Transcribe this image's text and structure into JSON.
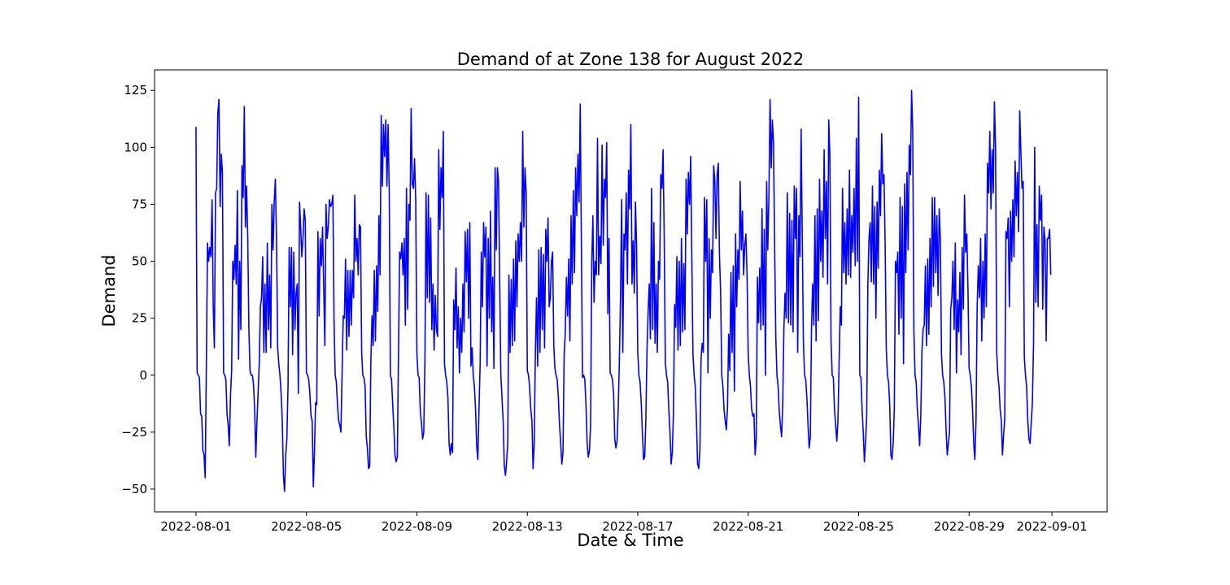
{
  "chart_data": {
    "type": "line",
    "title": "Demand of at Zone 138 for August 2022",
    "xlabel": "Date & Time",
    "ylabel": "Demand",
    "x_start": "2022-08-01",
    "x_end": "2022-08-31 23:00",
    "xlim": [
      "2022-07-30 12:00",
      "2022-09-03 00:00"
    ],
    "ylim": [
      -60,
      134
    ],
    "x_ticks": [
      "2022-08-01",
      "2022-08-05",
      "2022-08-09",
      "2022-08-13",
      "2022-08-17",
      "2022-08-21",
      "2022-08-25",
      "2022-08-29",
      "2022-09-01"
    ],
    "y_ticks": [
      125,
      100,
      75,
      50,
      25,
      0,
      -25,
      -50
    ],
    "y_tick_labels": [
      "125",
      "100",
      "75",
      "50",
      "25",
      "0",
      "−25",
      "−50"
    ],
    "grid": false,
    "line_color": "#0000ff",
    "series": [
      {
        "values": [
          109,
          1,
          0,
          -1,
          -17,
          -18,
          -33,
          -35,
          -45,
          3,
          58,
          50,
          56,
          52,
          77,
          30,
          12,
          80,
          82,
          115,
          121,
          74,
          97,
          89,
          1,
          0,
          -2,
          -17,
          -22,
          -31,
          -9,
          2,
          50,
          42,
          57,
          40,
          81,
          7,
          50,
          20,
          92,
          78,
          118,
          65,
          83,
          60,
          20,
          2,
          0,
          0,
          -4,
          -15,
          -36,
          -20,
          -8,
          5,
          30,
          34,
          52,
          10,
          40,
          10,
          58,
          20,
          44,
          12,
          75,
          55,
          76,
          86,
          60,
          12,
          5,
          0,
          -8,
          -20,
          -44,
          -51,
          -35,
          -28,
          -5,
          56,
          30,
          56,
          9,
          54,
          20,
          36,
          40,
          -8,
          76,
          65,
          52,
          60,
          73,
          68,
          1,
          0,
          -2,
          -8,
          -18,
          -20,
          -49,
          -33,
          -12,
          -13,
          63,
          26,
          60,
          48,
          65,
          40,
          13,
          75,
          60,
          65,
          77,
          74,
          75,
          79,
          24,
          0,
          -3,
          -13,
          -20,
          -22,
          -25,
          1,
          26,
          25,
          51,
          11,
          46,
          17,
          46,
          22,
          46,
          34,
          79,
          50,
          60,
          44,
          66,
          65,
          10,
          0,
          -1,
          -5,
          -27,
          -32,
          -41,
          -40,
          6,
          26,
          13,
          46,
          15,
          48,
          28,
          70,
          44,
          114,
          83,
          110,
          96,
          112,
          83,
          110,
          80,
          0,
          -2,
          -13,
          -23,
          -35,
          -38,
          -36,
          8,
          54,
          51,
          58,
          44,
          60,
          22,
          82,
          29,
          75,
          68,
          117,
          84,
          82,
          95,
          77,
          10,
          0,
          -1,
          -16,
          -21,
          -28,
          -25,
          6,
          80,
          34,
          79,
          32,
          69,
          20,
          40,
          11,
          35,
          20,
          17,
          99,
          64,
          91,
          78,
          107,
          5,
          0,
          -3,
          -10,
          -30,
          -35,
          -30,
          -34,
          33,
          20,
          47,
          12,
          30,
          1,
          25,
          10,
          40,
          19,
          63,
          41,
          64,
          25,
          67,
          4,
          12,
          0,
          -5,
          -15,
          -31,
          -37,
          -15,
          5,
          54,
          30,
          67,
          52,
          65,
          4,
          60,
          25,
          72,
          19,
          43,
          3,
          91,
          55,
          91,
          85,
          40,
          0,
          -10,
          -20,
          -40,
          -44,
          -38,
          -30,
          44,
          10,
          42,
          13,
          51,
          15,
          59,
          30,
          62,
          50,
          67,
          50,
          107,
          65,
          91,
          80,
          2,
          0,
          -5,
          -15,
          -20,
          -41,
          -30,
          10,
          34,
          4,
          55,
          10,
          56,
          20,
          53,
          12,
          64,
          50,
          69,
          30,
          34,
          50,
          54,
          13,
          3,
          0,
          -2,
          -10,
          -22,
          -30,
          -39,
          -34,
          8,
          19,
          43,
          26,
          51,
          15,
          70,
          40,
          81,
          45,
          91,
          70,
          97,
          76,
          119,
          57,
          -1,
          0,
          -2,
          -13,
          -30,
          -36,
          -33,
          -22,
          49,
          70,
          32,
          50,
          44,
          104,
          44,
          61,
          49,
          101,
          57,
          86,
          78,
          102,
          27,
          60,
          1,
          0,
          -2,
          -8,
          -28,
          -32,
          -29,
          -15,
          6,
          34,
          77,
          10,
          62,
          55,
          80,
          40,
          90,
          73,
          110,
          40,
          59,
          36,
          76,
          56,
          10,
          0,
          -3,
          -12,
          -25,
          -37,
          -36,
          -20,
          10,
          28,
          40,
          16,
          82,
          20,
          67,
          14,
          40,
          10,
          50,
          42,
          88,
          82,
          99,
          60,
          5,
          0,
          -3,
          -15,
          -25,
          -39,
          -34,
          -17,
          31,
          21,
          52,
          11,
          50,
          13,
          60,
          19,
          49,
          20,
          86,
          62,
          89,
          75,
          96,
          50,
          9,
          0,
          -5,
          -20,
          -39,
          -41,
          -33,
          7,
          14,
          10,
          78,
          50,
          77,
          1,
          60,
          25,
          55,
          45,
          92,
          85,
          60,
          88,
          93,
          53,
          37,
          0,
          -5,
          -15,
          -20,
          -24,
          -14,
          18,
          2,
          45,
          10,
          48,
          -7,
          62,
          30,
          55,
          42,
          85,
          55,
          72,
          44,
          57,
          62,
          44,
          9,
          0,
          -5,
          -15,
          -18,
          -17,
          -35,
          -28,
          43,
          23,
          47,
          20,
          73,
          22,
          64,
          0,
          85,
          55,
          78,
          121,
          91,
          112,
          102,
          55,
          16,
          0,
          -5,
          -16,
          -22,
          -27,
          -13,
          20,
          36,
          25,
          80,
          23,
          71,
          22,
          68,
          19,
          83,
          60,
          82,
          10,
          70,
          52,
          108,
          60,
          14,
          0,
          -2,
          -10,
          -22,
          -32,
          -27,
          20,
          40,
          22,
          70,
          15,
          73,
          24,
          86,
          50,
          72,
          43,
          99,
          60,
          85,
          40,
          112,
          96,
          15,
          0,
          -1,
          -15,
          -22,
          -29,
          -20,
          5,
          30,
          22,
          82,
          45,
          67,
          40,
          73,
          44,
          90,
          43,
          70,
          54,
          82,
          48,
          104,
          50,
          122,
          0,
          -1,
          -15,
          -25,
          -38,
          -29,
          -18,
          40,
          60,
          67,
          41,
          83,
          40,
          74,
          25,
          76,
          47,
          90,
          70,
          106,
          84,
          88,
          58,
          12,
          0,
          -3,
          -13,
          -35,
          -37,
          -30,
          -15,
          50,
          45,
          54,
          18,
          78,
          25,
          74,
          5,
          84,
          45,
          89,
          55,
          101,
          88,
          125,
          107,
          20,
          0,
          -3,
          -15,
          -22,
          -31,
          -18,
          10,
          20,
          22,
          48,
          13,
          51,
          18,
          60,
          30,
          78,
          39,
          78,
          45,
          70,
          35,
          73,
          60,
          9,
          0,
          -3,
          -10,
          -24,
          -35,
          -30,
          -25,
          29,
          34,
          50,
          20,
          58,
          1,
          33,
          19,
          45,
          9,
          56,
          29,
          79,
          54,
          62,
          38,
          3,
          0,
          -5,
          -15,
          -30,
          -37,
          -20,
          30,
          48,
          34,
          60,
          15,
          50,
          25,
          62,
          30,
          93,
          80,
          107,
          73,
          99,
          80,
          120,
          100,
          10,
          0,
          -5,
          -15,
          -20,
          -35,
          -26,
          -19,
          63,
          60,
          69,
          30,
          72,
          50,
          77,
          52,
          94,
          70,
          89,
          63,
          116,
          98,
          82,
          85,
          8,
          0,
          -5,
          -20,
          -28,
          -30,
          -21,
          -12,
          14,
          100,
          32,
          66,
          30,
          83,
          68,
          79,
          29,
          65,
          59,
          15,
          60,
          60,
          64,
          44
        ]
      }
    ]
  }
}
